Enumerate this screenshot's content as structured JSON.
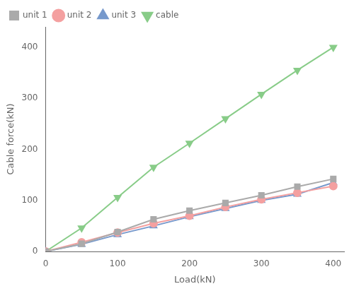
{
  "chart_data": {
    "type": "line",
    "x_label": "Load(kN)",
    "y_label": "Cable force(kN)",
    "x": [
      0,
      50,
      100,
      150,
      200,
      250,
      300,
      350,
      400
    ],
    "series": [
      {
        "name": "unit 1",
        "color": "#aaaaaa",
        "marker": "square",
        "values": [
          0,
          15,
          38,
          63,
          80,
          95,
          110,
          127,
          142
        ]
      },
      {
        "name": "unit 2",
        "color": "#f4a0a0",
        "marker": "circle",
        "values": [
          0,
          18,
          37,
          55,
          70,
          87,
          102,
          115,
          128
        ]
      },
      {
        "name": "unit 3",
        "color": "#7799cc",
        "marker": "triangle-up",
        "values": [
          0,
          14,
          33,
          50,
          68,
          84,
          100,
          112,
          135
        ]
      },
      {
        "name": "cable",
        "color": "#88cc88",
        "marker": "triangle-down",
        "values": [
          0,
          46,
          106,
          165,
          212,
          260,
          308,
          355,
          400
        ]
      }
    ],
    "xlim": [
      0,
      415
    ],
    "xticks": [
      0,
      100,
      200,
      300,
      400
    ],
    "ylim": [
      0,
      440
    ],
    "yticks": [
      0,
      100,
      200,
      300,
      400
    ],
    "grid": false,
    "legend": "upper left"
  }
}
